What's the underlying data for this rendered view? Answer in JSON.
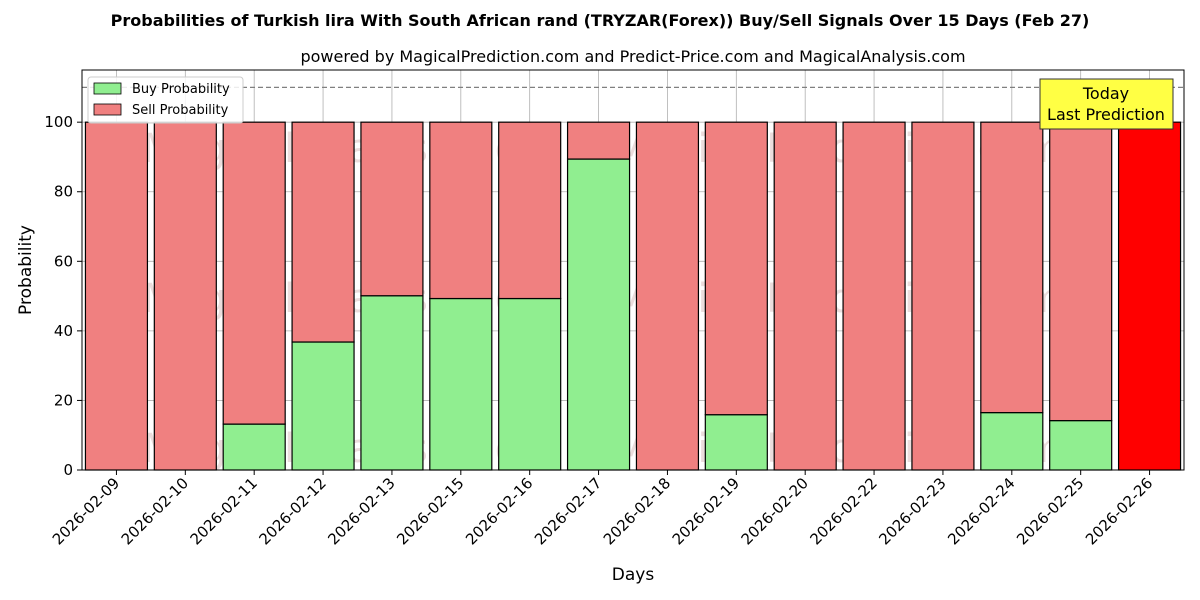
{
  "chart_data": {
    "type": "bar",
    "stacked": true,
    "title": "Probabilities of Turkish lira With South African rand (TRYZAR(Forex)) Buy/Sell Signals Over 15 Days (Feb 27)",
    "subtitle": "powered by MagicalPrediction.com and Predict-Price.com and MagicalAnalysis.com",
    "xlabel": "Days",
    "ylabel": "Probability",
    "ylim": [
      0,
      115
    ],
    "yticks": [
      0,
      20,
      40,
      60,
      80,
      100
    ],
    "reference_line": 110,
    "grid": true,
    "legend_position": "top-left",
    "categories": [
      "2026-02-09",
      "2026-02-10",
      "2026-02-11",
      "2026-02-12",
      "2026-02-13",
      "2026-02-15",
      "2026-02-16",
      "2026-02-17",
      "2026-02-18",
      "2026-02-19",
      "2026-02-20",
      "2026-02-22",
      "2026-02-23",
      "2026-02-24",
      "2026-02-25",
      "2026-02-26"
    ],
    "series": [
      {
        "name": "Buy Probability",
        "color": "#90ee90",
        "values": [
          0,
          0,
          13.2,
          36.8,
          50.1,
          49.3,
          49.3,
          89.4,
          0,
          15.9,
          0,
          0,
          0,
          16.5,
          14.2,
          0
        ]
      },
      {
        "name": "Sell Probability",
        "color": "#f08080",
        "values": [
          100,
          100,
          86.8,
          63.2,
          49.9,
          50.7,
          50.7,
          10.6,
          100,
          84.1,
          100,
          100,
          100,
          83.5,
          85.8,
          100
        ]
      }
    ],
    "highlight": {
      "category": "2026-02-26",
      "color": "#ff0000"
    },
    "annotation": {
      "lines": [
        "Today",
        "Last Prediction"
      ],
      "background": "#ffff44"
    },
    "watermarks": [
      "MagicalAnalysis.com",
      "MagicalPrediction.com"
    ]
  }
}
